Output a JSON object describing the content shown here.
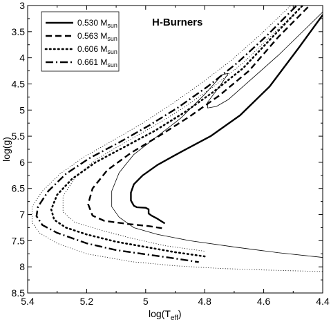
{
  "chart_data": {
    "type": "line",
    "title": "H-Burners",
    "xlabel": "log(T",
    "xlabel_sub": "eff",
    "xlabel_close": ")",
    "ylabel": "log(g)",
    "xlim": [
      5.4,
      4.4
    ],
    "ylim": [
      3.0,
      8.5
    ],
    "x_reversed": true,
    "y_reversed": true,
    "x_ticks": [
      5.4,
      5.2,
      5.0,
      4.8,
      4.6,
      4.4
    ],
    "x_tick_labels": [
      "5.4",
      "5.2",
      "5",
      "4.8",
      "4.6",
      "4.4"
    ],
    "y_ticks": [
      3.0,
      3.5,
      4.0,
      4.5,
      5.0,
      5.5,
      6.0,
      6.5,
      7.0,
      7.5,
      8.0,
      8.5
    ],
    "y_tick_labels": [
      "3",
      "3.5",
      "4",
      "4.5",
      "5",
      "5.5",
      "6",
      "6.5",
      "7",
      "7.5",
      "8",
      "8.5"
    ],
    "grid": false,
    "legend_position": "top-left",
    "series": [
      {
        "name": "0.530 M",
        "name_sub": "sun",
        "style": "solid",
        "width": 2.4,
        "points": [
          [
            4.4,
            3.18
          ],
          [
            4.48,
            3.8
          ],
          [
            4.58,
            4.55
          ],
          [
            4.68,
            5.1
          ],
          [
            4.78,
            5.5
          ],
          [
            4.88,
            5.8
          ],
          [
            4.96,
            6.05
          ],
          [
            5.01,
            6.25
          ],
          [
            5.04,
            6.42
          ],
          [
            5.05,
            6.58
          ],
          [
            5.05,
            6.73
          ],
          [
            5.04,
            6.83
          ],
          [
            5.03,
            6.86
          ],
          [
            5.0,
            6.87
          ],
          [
            4.99,
            6.9
          ],
          [
            4.99,
            6.98
          ],
          [
            4.98,
            7.02
          ],
          [
            4.96,
            7.08
          ],
          [
            4.935,
            7.17
          ]
        ]
      },
      {
        "name": "0.563 M",
        "name_sub": "sun",
        "style": "dash",
        "width": 2.4,
        "points": [
          [
            4.45,
            3.03
          ],
          [
            4.55,
            3.6
          ],
          [
            4.65,
            4.25
          ],
          [
            4.75,
            4.72
          ],
          [
            4.85,
            5.12
          ],
          [
            4.95,
            5.48
          ],
          [
            5.05,
            5.82
          ],
          [
            5.13,
            6.15
          ],
          [
            5.18,
            6.5
          ],
          [
            5.195,
            6.8
          ],
          [
            5.18,
            7.02
          ],
          [
            5.14,
            7.12
          ],
          [
            5.06,
            7.18
          ],
          [
            4.99,
            7.22
          ],
          [
            4.945,
            7.26
          ]
        ]
      },
      {
        "name": "0.606 M",
        "name_sub": "sun",
        "style": "dot",
        "width": 2.6,
        "points": [
          [
            4.47,
            3.01
          ],
          [
            4.57,
            3.6
          ],
          [
            4.67,
            4.2
          ],
          [
            4.77,
            4.65
          ],
          [
            4.87,
            5.05
          ],
          [
            4.97,
            5.4
          ],
          [
            5.07,
            5.7
          ],
          [
            5.17,
            6.0
          ],
          [
            5.25,
            6.32
          ],
          [
            5.3,
            6.62
          ],
          [
            5.32,
            6.9
          ],
          [
            5.31,
            7.1
          ],
          [
            5.27,
            7.25
          ],
          [
            5.2,
            7.38
          ],
          [
            5.1,
            7.52
          ],
          [
            5.0,
            7.62
          ],
          [
            4.9,
            7.72
          ],
          [
            4.8,
            7.8
          ]
        ]
      },
      {
        "name": "0.661 M",
        "name_sub": "sun",
        "style": "dashdot",
        "width": 2.4,
        "points": [
          [
            4.49,
            3.01
          ],
          [
            4.59,
            3.58
          ],
          [
            4.69,
            4.1
          ],
          [
            4.79,
            4.55
          ],
          [
            4.89,
            4.95
          ],
          [
            4.99,
            5.3
          ],
          [
            5.09,
            5.62
          ],
          [
            5.19,
            5.92
          ],
          [
            5.27,
            6.22
          ],
          [
            5.33,
            6.55
          ],
          [
            5.365,
            6.85
          ],
          [
            5.37,
            7.03
          ],
          [
            5.35,
            7.2
          ],
          [
            5.3,
            7.35
          ],
          [
            5.2,
            7.55
          ],
          [
            5.1,
            7.68
          ],
          [
            5.0,
            7.76
          ],
          [
            4.9,
            7.84
          ],
          [
            4.82,
            7.91
          ]
        ]
      },
      {
        "name": "",
        "style": "thin-solid",
        "width": 0.8,
        "points": [
          [
            4.39,
            3.07
          ],
          [
            4.45,
            3.4
          ],
          [
            4.55,
            3.95
          ],
          [
            4.65,
            4.45
          ],
          [
            4.72,
            4.8
          ],
          [
            4.76,
            4.93
          ],
          [
            4.79,
            4.96
          ],
          [
            4.79,
            4.85
          ],
          [
            4.75,
            4.55
          ],
          [
            4.72,
            4.3
          ],
          [
            4.74,
            4.32
          ],
          [
            4.8,
            4.7
          ],
          [
            4.88,
            5.15
          ],
          [
            4.96,
            5.5
          ],
          [
            5.04,
            5.85
          ],
          [
            5.09,
            6.2
          ],
          [
            5.115,
            6.55
          ],
          [
            5.115,
            6.85
          ],
          [
            5.09,
            7.05
          ],
          [
            5.04,
            7.25
          ],
          [
            4.96,
            7.38
          ],
          [
            4.85,
            7.5
          ],
          [
            4.7,
            7.62
          ],
          [
            4.55,
            7.73
          ],
          [
            4.4,
            7.82
          ]
        ]
      },
      {
        "name": "",
        "style": "thin-dot",
        "width": 0.9,
        "points": [
          [
            4.47,
            3.01
          ],
          [
            4.57,
            3.55
          ],
          [
            4.67,
            4.1
          ],
          [
            4.77,
            4.55
          ],
          [
            4.87,
            4.95
          ],
          [
            4.97,
            5.3
          ],
          [
            5.07,
            5.62
          ],
          [
            5.17,
            5.95
          ],
          [
            5.24,
            6.3
          ],
          [
            5.28,
            6.65
          ],
          [
            5.28,
            6.95
          ],
          [
            5.24,
            7.15
          ],
          [
            5.15,
            7.3
          ],
          [
            5.05,
            7.45
          ],
          [
            4.93,
            7.6
          ],
          [
            4.8,
            7.7
          ]
        ]
      },
      {
        "name": "",
        "style": "thin-dot",
        "width": 0.9,
        "points": [
          [
            4.51,
            3.01
          ],
          [
            4.61,
            3.55
          ],
          [
            4.71,
            4.05
          ],
          [
            4.81,
            4.48
          ],
          [
            4.91,
            4.88
          ],
          [
            5.01,
            5.25
          ],
          [
            5.11,
            5.58
          ],
          [
            5.21,
            5.9
          ],
          [
            5.29,
            6.22
          ],
          [
            5.35,
            6.55
          ],
          [
            5.385,
            6.85
          ],
          [
            5.385,
            7.15
          ],
          [
            5.36,
            7.35
          ],
          [
            5.3,
            7.55
          ],
          [
            5.2,
            7.75
          ],
          [
            5.05,
            7.9
          ],
          [
            4.9,
            7.98
          ],
          [
            4.75,
            8.03
          ],
          [
            4.6,
            8.06
          ],
          [
            4.4,
            8.09
          ]
        ]
      }
    ]
  }
}
